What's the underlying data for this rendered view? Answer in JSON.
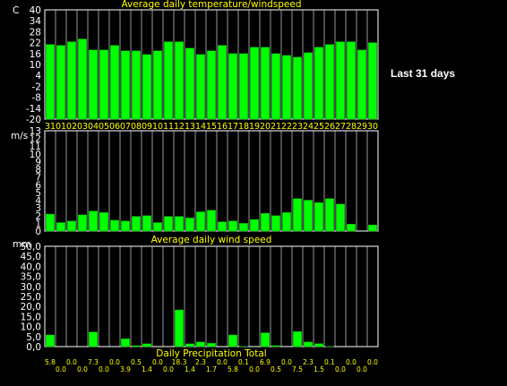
{
  "side_label": "Last 31 days",
  "colors": {
    "background": "#000000",
    "bar_fill": "#00ff00",
    "bar_edge": "#00a000",
    "plot_border": "#ffffff",
    "grid": "#ffffff",
    "title_text": "#ffff00",
    "axis_text": "#ffffff",
    "date_text": "#ffff00",
    "precip_text": "#ffff00"
  },
  "chart_data": [
    {
      "type": "bar",
      "title": "Average daily temperature/windspeed",
      "ylabel": "C",
      "ylim": [
        -20,
        40
      ],
      "yticks": [
        "40",
        "34",
        "28",
        "22",
        "16",
        "10",
        "4",
        "-2",
        "-8",
        "-14",
        "-20"
      ],
      "grid": "vertical",
      "categories": [
        "31",
        "01",
        "02",
        "03",
        "04",
        "05",
        "06",
        "07",
        "08",
        "09",
        "10",
        "11",
        "12",
        "13",
        "14",
        "15",
        "16",
        "17",
        "18",
        "19",
        "20",
        "21",
        "22",
        "23",
        "24",
        "25",
        "26",
        "27",
        "28",
        "29",
        "30"
      ],
      "values": [
        21,
        20.5,
        22.5,
        24,
        18,
        18,
        20.5,
        17.5,
        17.5,
        15.5,
        17.5,
        22.5,
        22.5,
        19,
        15.5,
        17.5,
        20.5,
        16,
        16,
        19.5,
        19.5,
        16,
        15,
        14,
        16.5,
        19.5,
        21,
        22.5,
        22.5,
        18,
        22
      ]
    },
    {
      "type": "bar",
      "title": "",
      "ylabel": "m/s",
      "ylim": [
        0,
        13
      ],
      "yticks": [
        "13",
        "12",
        "11",
        "10",
        "9",
        "8",
        "7",
        "6",
        "5",
        "4",
        "3",
        "2",
        "1",
        "0"
      ],
      "grid": "vertical",
      "values": [
        2.2,
        1.1,
        1.3,
        2.1,
        2.6,
        2.4,
        1.4,
        1.3,
        1.9,
        2.0,
        1.1,
        1.9,
        1.9,
        1.7,
        2.5,
        2.7,
        1.2,
        1.3,
        1.0,
        1.5,
        2.3,
        2.0,
        2.4,
        4.2,
        4.0,
        3.7,
        4.2,
        3.5,
        0.9,
        0.0,
        0.8
      ]
    },
    {
      "type": "bar",
      "title": "Average daily wind speed",
      "ylabel": "mm",
      "xlabel": "Daily Precipitation Total",
      "ylim": [
        0,
        50
      ],
      "yticks": [
        "50,0",
        "45,0",
        "40,0",
        "35,0",
        "30,0",
        "25,0",
        "20,0",
        "15,0",
        "10,0",
        "5,0",
        "0,0"
      ],
      "grid": "vertical",
      "values": [
        5.8,
        0.0,
        0.0,
        0.0,
        7.3,
        0.0,
        0.0,
        3.9,
        0.5,
        1.4,
        0.0,
        0.0,
        18.3,
        1.4,
        2.3,
        1.7,
        0.0,
        5.8,
        0.1,
        0.0,
        6.9,
        0.5,
        0.0,
        7.5,
        2.3,
        1.5,
        0.1,
        0.0,
        0.0,
        0.0,
        0.0
      ],
      "value_labels": [
        "5.8",
        "0.0",
        "0.0",
        "0.0",
        "7.3",
        "0.0",
        "0.0",
        "3.9",
        "0.5",
        "1.4",
        "0.0",
        "0.0",
        "18.3",
        "1.4",
        "2.3",
        "1.7",
        "0.0",
        "5.8",
        "0.1",
        "0.0",
        "6.9",
        "0.5",
        "0.0",
        "7.5",
        "2.3",
        "1.5",
        "0.1",
        "0.0",
        "0.0",
        "0.0",
        "0.0"
      ]
    }
  ]
}
